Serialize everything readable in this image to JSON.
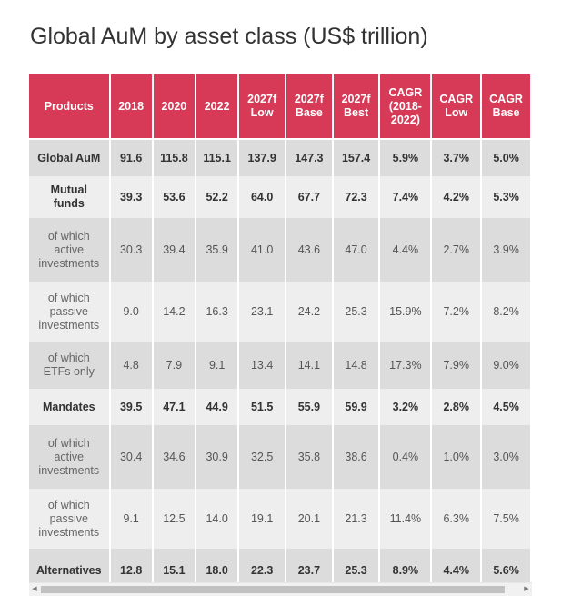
{
  "chart_data": {
    "type": "table",
    "title": "Global AuM by asset class (US$ trillion)",
    "columns": [
      "Products",
      "2018",
      "2020",
      "2022",
      "2027f Low",
      "2027f Base",
      "2027f Best",
      "CAGR (2018-2022)",
      "CAGR Low",
      "CAGR Base"
    ],
    "rows": [
      {
        "label": "Global AuM",
        "values": [
          "91.6",
          "115.8",
          "115.1",
          "137.9",
          "147.3",
          "157.4",
          "5.9%",
          "3.7%",
          "5.0%"
        ]
      },
      {
        "label": "Mutual funds",
        "values": [
          "39.3",
          "53.6",
          "52.2",
          "64.0",
          "67.7",
          "72.3",
          "7.4%",
          "4.2%",
          "5.3%"
        ]
      },
      {
        "label": "of which active investments",
        "values": [
          "30.3",
          "39.4",
          "35.9",
          "41.0",
          "43.6",
          "47.0",
          "4.4%",
          "2.7%",
          "3.9%"
        ]
      },
      {
        "label": "of which passive investments",
        "values": [
          "9.0",
          "14.2",
          "16.3",
          "23.1",
          "24.2",
          "25.3",
          "15.9%",
          "7.2%",
          "8.2%"
        ]
      },
      {
        "label": "of which ETFs only",
        "values": [
          "4.8",
          "7.9",
          "9.1",
          "13.4",
          "14.1",
          "14.8",
          "17.3%",
          "7.9%",
          "9.0%"
        ]
      },
      {
        "label": "Mandates",
        "values": [
          "39.5",
          "47.1",
          "44.9",
          "51.5",
          "55.9",
          "59.9",
          "3.2%",
          "2.8%",
          "4.5%"
        ]
      },
      {
        "label": "of which active investments",
        "values": [
          "30.4",
          "34.6",
          "30.9",
          "32.5",
          "35.8",
          "38.6",
          "0.4%",
          "1.0%",
          "3.0%"
        ]
      },
      {
        "label": "of which passive investments",
        "values": [
          "9.1",
          "12.5",
          "14.0",
          "19.1",
          "20.1",
          "21.3",
          "11.4%",
          "6.3%",
          "7.5%"
        ]
      },
      {
        "label": "Alternatives",
        "values": [
          "12.8",
          "15.1",
          "18.0",
          "22.3",
          "23.7",
          "25.3",
          "8.9%",
          "4.4%",
          "5.6%"
        ]
      }
    ]
  },
  "colors": {
    "header_bg": "#d63a56",
    "row_dark": "#dcdcdc",
    "row_light": "#eeeeee"
  },
  "scrollbar": {
    "left_arrow_icon": "triangle-left-icon",
    "right_arrow_icon": "triangle-right-icon"
  }
}
